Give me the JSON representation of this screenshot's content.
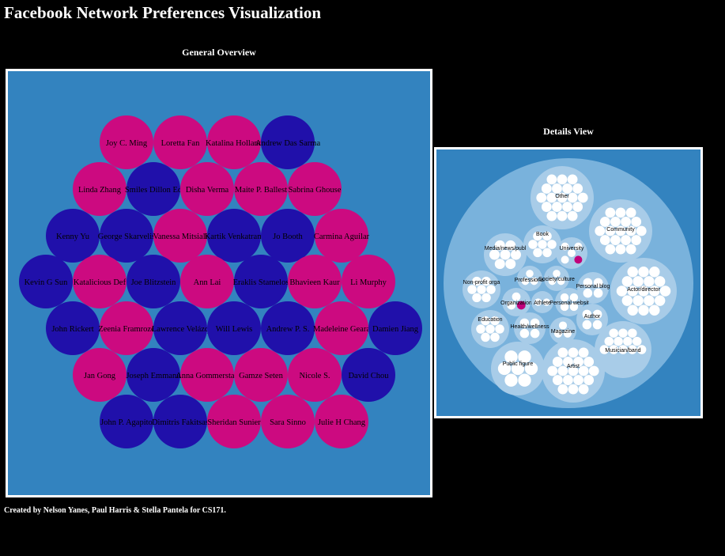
{
  "page": {
    "title": "Facebook Network Preferences Visualization",
    "footer": "Created by Nelson Yanes, Paul Harris & Stella Pantela for CS171."
  },
  "colors": {
    "background": "#000000",
    "panel": "#3383bf",
    "female": "#cc0a80",
    "male": "#2010aa",
    "outer_circle": "#79b2dc",
    "category_circle": "#a8cce8",
    "leaf": "#ffffff",
    "highlight": "#c0007a"
  },
  "overview": {
    "heading": "General Overview",
    "rows": [
      [
        {
          "name": "Joy C. Ming",
          "color": "female"
        },
        {
          "name": "Loretta Fan",
          "color": "female"
        },
        {
          "name": "Katalina Holland",
          "color": "female"
        },
        {
          "name": "Andrew Das Sarma",
          "color": "male"
        }
      ],
      [
        {
          "name": "Linda Zhang",
          "color": "female"
        },
        {
          "name": "Smiles Dillon Ed",
          "color": "male"
        },
        {
          "name": "Disha Verma",
          "color": "female"
        },
        {
          "name": "Maite P. Ballest",
          "color": "female"
        },
        {
          "name": "Sabrina Ghouse",
          "color": "female"
        }
      ],
      [
        {
          "name": "Kenny Yu",
          "color": "male"
        },
        {
          "name": "George Skarvelis",
          "color": "male"
        },
        {
          "name": "Vanessa Mitsiali",
          "color": "female"
        },
        {
          "name": "Kartik Venkatram",
          "color": "male"
        },
        {
          "name": "Jo Booth",
          "color": "male"
        },
        {
          "name": "Carmina Aguilar",
          "color": "female"
        }
      ],
      [
        {
          "name": "Kevin G Sun",
          "color": "male"
        },
        {
          "name": "Katalicious Def",
          "color": "female"
        },
        {
          "name": "Joe Blitzstein",
          "color": "male"
        },
        {
          "name": "Ann Lai",
          "color": "female"
        },
        {
          "name": "Eraklis Stamelos",
          "color": "male"
        },
        {
          "name": "Bhavieen Kaur",
          "color": "female"
        },
        {
          "name": "Li Murphy",
          "color": "female"
        }
      ],
      [
        {
          "name": "John Rickert",
          "color": "male"
        },
        {
          "name": "Zeenia Framroze",
          "color": "female"
        },
        {
          "name": "Lawrence Velázq",
          "color": "male"
        },
        {
          "name": "Will Lewis",
          "color": "male"
        },
        {
          "name": "Andrew P. S.",
          "color": "male"
        },
        {
          "name": "Madeleine Geara",
          "color": "female"
        },
        {
          "name": "Damien Jiang",
          "color": "male"
        }
      ],
      [
        {
          "name": "Jan Gong",
          "color": "female"
        },
        {
          "name": "Joseph Emmanu",
          "color": "male"
        },
        {
          "name": "Anna Gommerstad",
          "color": "female"
        },
        {
          "name": "Gamze Seten",
          "color": "female"
        },
        {
          "name": "Nicole S.",
          "color": "female"
        },
        {
          "name": "David Chou",
          "color": "male"
        }
      ],
      [
        {
          "name": "John P. Agapito",
          "color": "male"
        },
        {
          "name": "Dimitris Fakitsas",
          "color": "male"
        },
        {
          "name": "Sheridan Sunier",
          "color": "female"
        },
        {
          "name": "Sara Sinno",
          "color": "female"
        },
        {
          "name": "Julie H Chang",
          "color": "female"
        }
      ]
    ]
  },
  "details": {
    "heading": "Details View",
    "categories": [
      {
        "label": "Other",
        "leaves": 19
      },
      {
        "label": "Community",
        "leaves": 19
      },
      {
        "label": "Book",
        "leaves": 7
      },
      {
        "label": "University",
        "leaves": 5,
        "highlight": true
      },
      {
        "label": "Media/news/publ",
        "leaves": 7
      },
      {
        "label": "Professional",
        "leaves": 3
      },
      {
        "label": "Society/culture",
        "leaves": 3
      },
      {
        "label": "Personal blog",
        "leaves": 4
      },
      {
        "label": "Actor/director",
        "leaves": 19
      },
      {
        "label": "Non-profit orga",
        "leaves": 7
      },
      {
        "label": "Organization",
        "leaves": 3,
        "highlight": true
      },
      {
        "label": "Athlete",
        "leaves": 2
      },
      {
        "label": "Personal websit",
        "leaves": 4
      },
      {
        "label": "Education",
        "leaves": 7
      },
      {
        "label": "Health/wellness",
        "leaves": 4
      },
      {
        "label": "Magazine",
        "leaves": 3
      },
      {
        "label": "Author",
        "leaves": 4
      },
      {
        "label": "Musician/band",
        "leaves": 12
      },
      {
        "label": "Public figure",
        "leaves": 7
      },
      {
        "label": "Artist",
        "leaves": 19
      }
    ]
  }
}
